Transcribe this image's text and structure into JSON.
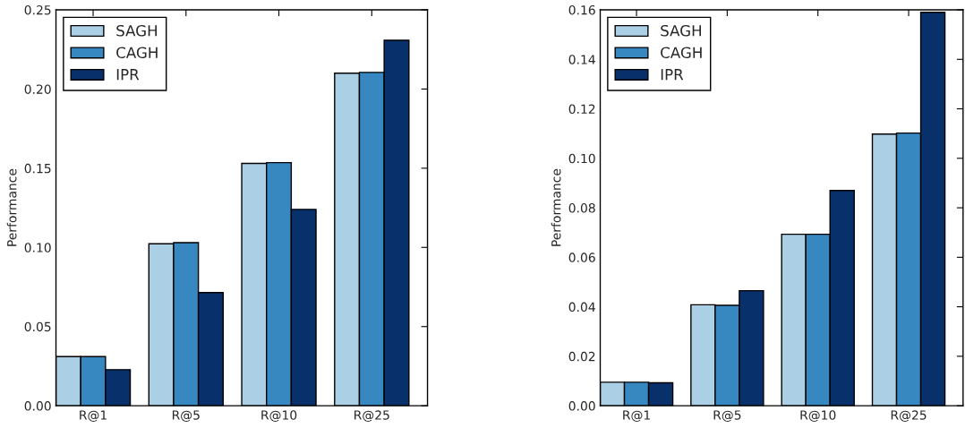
{
  "chart_data": [
    {
      "type": "bar",
      "ylabel": "Performance",
      "categories": [
        "R@1",
        "R@5",
        "R@10",
        "R@25"
      ],
      "ylim": [
        0,
        0.25
      ],
      "yticks": [
        {
          "value": 0,
          "label": "0.00"
        },
        {
          "value": 0.05,
          "label": "0.05"
        },
        {
          "value": 0.1,
          "label": "0.10"
        },
        {
          "value": 0.15,
          "label": "0.15"
        },
        {
          "value": 0.2,
          "label": "0.20"
        },
        {
          "value": 0.25,
          "label": "0.25"
        }
      ],
      "legend": "top left",
      "grid": false,
      "series": [
        {
          "name": "SAGH",
          "color": "#abcfe5",
          "values": [
            0.031,
            0.1023,
            0.153,
            0.21
          ]
        },
        {
          "name": "CAGH",
          "color": "#3787c0",
          "values": [
            0.031,
            0.103,
            0.1535,
            0.2105
          ]
        },
        {
          "name": "IPR",
          "color": "#08306b",
          "values": [
            0.0228,
            0.0715,
            0.124,
            0.2308
          ]
        }
      ]
    },
    {
      "type": "bar",
      "ylabel": "Performance",
      "categories": [
        "R@1",
        "R@5",
        "R@10",
        "R@25"
      ],
      "ylim": [
        0,
        0.16
      ],
      "yticks": [
        {
          "value": 0,
          "label": "0.00"
        },
        {
          "value": 0.02,
          "label": "0.02"
        },
        {
          "value": 0.04,
          "label": "0.04"
        },
        {
          "value": 0.06,
          "label": "0.06"
        },
        {
          "value": 0.08,
          "label": "0.08"
        },
        {
          "value": 0.1,
          "label": "0.10"
        },
        {
          "value": 0.12,
          "label": "0.12"
        },
        {
          "value": 0.14,
          "label": "0.14"
        },
        {
          "value": 0.16,
          "label": "0.16"
        }
      ],
      "legend": "top left",
      "grid": false,
      "series": [
        {
          "name": "SAGH",
          "color": "#abcfe5",
          "values": [
            0.0095,
            0.0408,
            0.0693,
            0.1098
          ]
        },
        {
          "name": "CAGH",
          "color": "#3787c0",
          "values": [
            0.0095,
            0.0406,
            0.0693,
            0.1102
          ]
        },
        {
          "name": "IPR",
          "color": "#08306b",
          "values": [
            0.0093,
            0.0465,
            0.087,
            0.159
          ]
        }
      ]
    }
  ]
}
